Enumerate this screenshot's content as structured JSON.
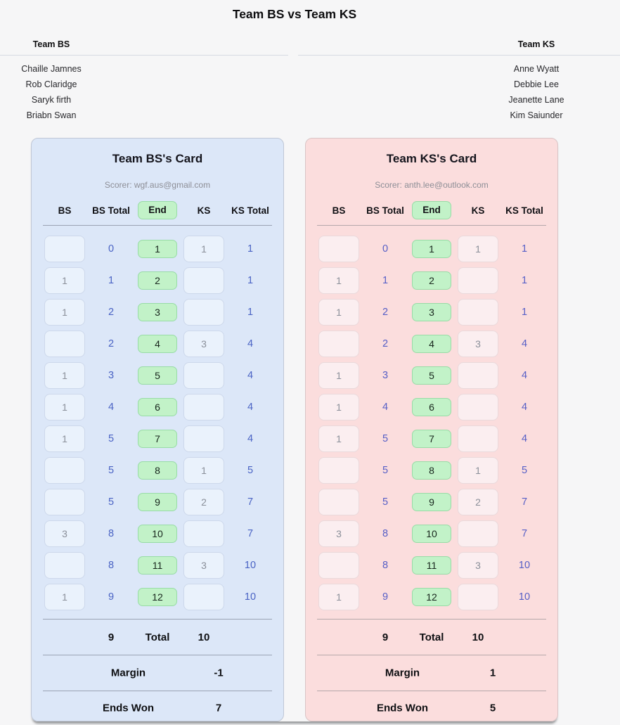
{
  "page": {
    "title": "Team BS vs Team KS"
  },
  "teams": {
    "left": {
      "name": "Team BS",
      "players": [
        "Chaille Jamnes",
        "Rob Claridge",
        "Saryk firth",
        "Briabn Swan"
      ]
    },
    "right": {
      "name": "Team KS",
      "players": [
        "Anne Wyatt",
        "Debbie Lee",
        "Jeanette Lane",
        "Kim Saiunder"
      ]
    }
  },
  "colors": {
    "card_bs_bg": "#dce7f8",
    "card_ks_bg": "#fbdddd",
    "end_pill_bg": "#c2f2c8",
    "end_pill_border": "#98dca6",
    "running_total_text": "#4a63c4",
    "input_text": "#8a8f99"
  },
  "cards": [
    {
      "title": "Team BS's Card",
      "scorer_label": "Scorer: wgf.aus@gmail.com",
      "columns": [
        "BS",
        "BS Total",
        "End",
        "KS",
        "KS Total"
      ],
      "rows": [
        {
          "bs": "",
          "bs_total": "0",
          "end": "1",
          "ks": "1",
          "ks_total": "1"
        },
        {
          "bs": "1",
          "bs_total": "1",
          "end": "2",
          "ks": "",
          "ks_total": "1"
        },
        {
          "bs": "1",
          "bs_total": "2",
          "end": "3",
          "ks": "",
          "ks_total": "1"
        },
        {
          "bs": "",
          "bs_total": "2",
          "end": "4",
          "ks": "3",
          "ks_total": "4"
        },
        {
          "bs": "1",
          "bs_total": "3",
          "end": "5",
          "ks": "",
          "ks_total": "4"
        },
        {
          "bs": "1",
          "bs_total": "4",
          "end": "6",
          "ks": "",
          "ks_total": "4"
        },
        {
          "bs": "1",
          "bs_total": "5",
          "end": "7",
          "ks": "",
          "ks_total": "4"
        },
        {
          "bs": "",
          "bs_total": "5",
          "end": "8",
          "ks": "1",
          "ks_total": "5"
        },
        {
          "bs": "",
          "bs_total": "5",
          "end": "9",
          "ks": "2",
          "ks_total": "7"
        },
        {
          "bs": "3",
          "bs_total": "8",
          "end": "10",
          "ks": "",
          "ks_total": "7"
        },
        {
          "bs": "",
          "bs_total": "8",
          "end": "11",
          "ks": "3",
          "ks_total": "10"
        },
        {
          "bs": "1",
          "bs_total": "9",
          "end": "12",
          "ks": "",
          "ks_total": "10"
        }
      ],
      "totals": {
        "bs_total": "9",
        "label": "Total",
        "ks_total": "10"
      },
      "margin": {
        "label": "Margin",
        "value": "-1"
      },
      "ends_won": {
        "label": "Ends Won",
        "value": "7"
      }
    },
    {
      "title": "Team KS's Card",
      "scorer_label": "Scorer: anth.lee@outlook.com",
      "columns": [
        "BS",
        "BS Total",
        "End",
        "KS",
        "KS Total"
      ],
      "rows": [
        {
          "bs": "",
          "bs_total": "0",
          "end": "1",
          "ks": "1",
          "ks_total": "1"
        },
        {
          "bs": "1",
          "bs_total": "1",
          "end": "2",
          "ks": "",
          "ks_total": "1"
        },
        {
          "bs": "1",
          "bs_total": "2",
          "end": "3",
          "ks": "",
          "ks_total": "1"
        },
        {
          "bs": "",
          "bs_total": "2",
          "end": "4",
          "ks": "3",
          "ks_total": "4"
        },
        {
          "bs": "1",
          "bs_total": "3",
          "end": "5",
          "ks": "",
          "ks_total": "4"
        },
        {
          "bs": "1",
          "bs_total": "4",
          "end": "6",
          "ks": "",
          "ks_total": "4"
        },
        {
          "bs": "1",
          "bs_total": "5",
          "end": "7",
          "ks": "",
          "ks_total": "4"
        },
        {
          "bs": "",
          "bs_total": "5",
          "end": "8",
          "ks": "1",
          "ks_total": "5"
        },
        {
          "bs": "",
          "bs_total": "5",
          "end": "9",
          "ks": "2",
          "ks_total": "7"
        },
        {
          "bs": "3",
          "bs_total": "8",
          "end": "10",
          "ks": "",
          "ks_total": "7"
        },
        {
          "bs": "",
          "bs_total": "8",
          "end": "11",
          "ks": "3",
          "ks_total": "10"
        },
        {
          "bs": "1",
          "bs_total": "9",
          "end": "12",
          "ks": "",
          "ks_total": "10"
        }
      ],
      "totals": {
        "bs_total": "9",
        "label": "Total",
        "ks_total": "10"
      },
      "margin": {
        "label": "Margin",
        "value": "1"
      },
      "ends_won": {
        "label": "Ends Won",
        "value": "5"
      }
    }
  ]
}
